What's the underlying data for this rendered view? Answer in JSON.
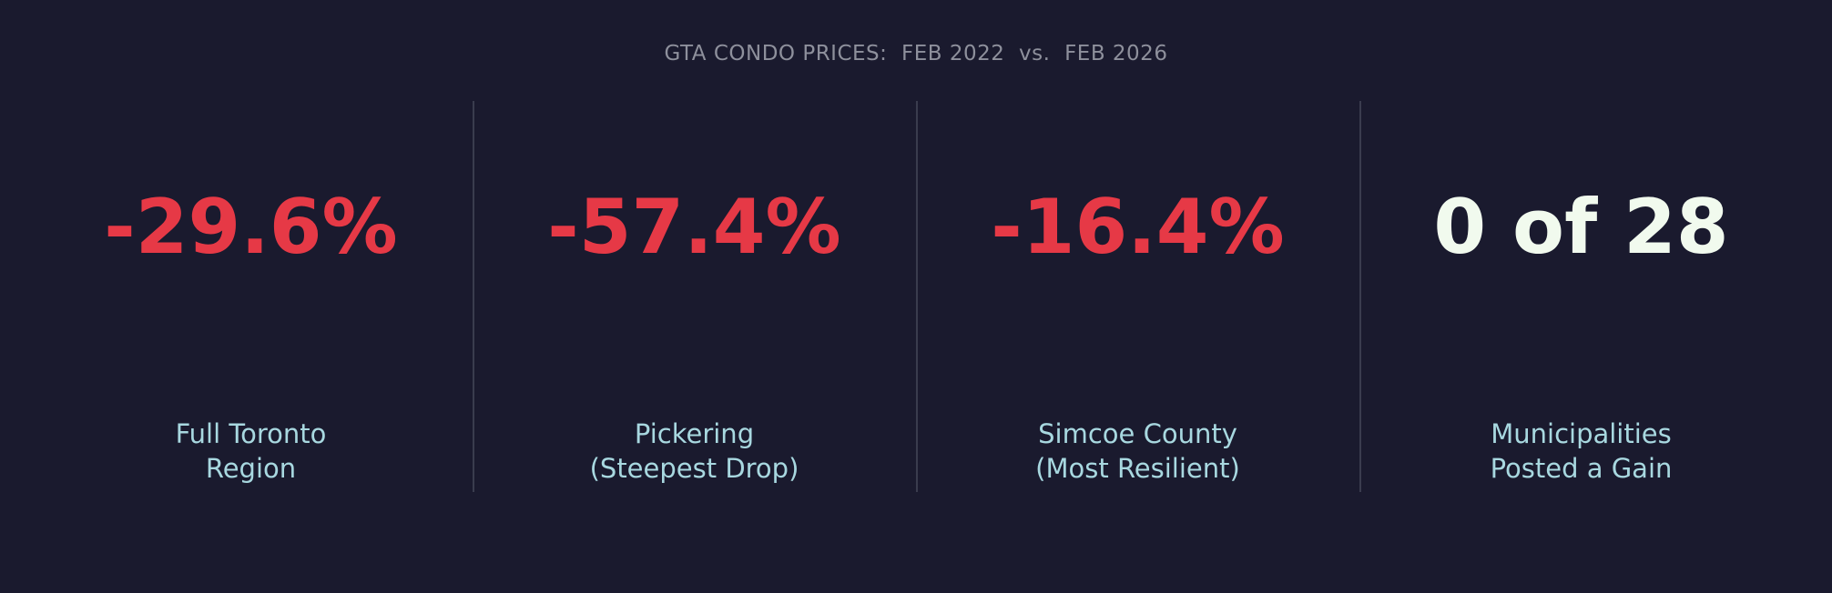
{
  "title": "GTA CONDO PRICES:  FEB 2022  vs.  FEB 2026",
  "colors": {
    "background": "#1a1a2e",
    "negative": "#e63946",
    "neutral": "#f1faee",
    "label": "#a8d8e0",
    "title": "#8e909c",
    "divider": "#3a3c4e"
  },
  "chart_data": {
    "type": "table",
    "title": "GTA CONDO PRICES:  FEB 2022  vs.  FEB 2026",
    "stats": [
      {
        "value": "-29.6%",
        "label_line1": "Full Toronto",
        "label_line2": "Region",
        "color": "#e63946"
      },
      {
        "value": "-57.4%",
        "label_line1": "Pickering",
        "label_line2": "(Steepest Drop)",
        "color": "#e63946"
      },
      {
        "value": "-16.4%",
        "label_line1": "Simcoe County",
        "label_line2": "(Most Resilient)",
        "color": "#e63946"
      },
      {
        "value": "0 of 28",
        "label_line1": "Municipalities",
        "label_line2": "Posted a Gain",
        "color": "#f1faee"
      }
    ]
  }
}
